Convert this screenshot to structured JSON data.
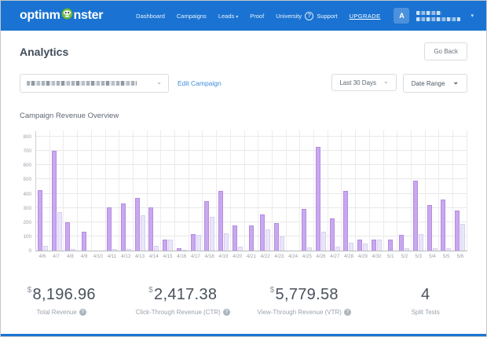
{
  "nav": {
    "logo": {
      "part1": "optinm",
      "part2": "nster"
    },
    "items": [
      {
        "label": "Dashboard"
      },
      {
        "label": "Campaigns"
      },
      {
        "label": "Leads"
      },
      {
        "label": "Proof"
      },
      {
        "label": "University"
      }
    ],
    "support_label": "Support",
    "upgrade_label": "UPGRADE",
    "avatar_letter": "A"
  },
  "header": {
    "title": "Analytics",
    "go_back_label": "Go Back"
  },
  "filters": {
    "edit_campaign_label": "Edit Campaign",
    "date_preset_value": "Last 30 Days",
    "date_range_label": "Date Range"
  },
  "chart_data": {
    "type": "bar",
    "title": "Campaign Revenue Overview",
    "categories": [
      "4/6",
      "4/7",
      "4/8",
      "4/9",
      "4/10",
      "4/11",
      "4/12",
      "4/13",
      "4/14",
      "4/15",
      "4/16",
      "4/17",
      "4/18",
      "4/19",
      "4/20",
      "4/21",
      "4/22",
      "4/23",
      "4/24",
      "4/25",
      "4/26",
      "4/27",
      "4/28",
      "4/29",
      "4/30",
      "5/1",
      "5/2",
      "5/3",
      "5/4",
      "5/5",
      "5/6"
    ],
    "series": [
      {
        "name": "Series 1 (dark purple bars)",
        "color": "#c9a8ee",
        "border": "#b48ce2",
        "values": [
          425,
          700,
          200,
          135,
          0,
          305,
          330,
          370,
          305,
          80,
          15,
          115,
          350,
          420,
          175,
          175,
          255,
          195,
          0,
          290,
          730,
          225,
          420,
          80,
          78,
          80,
          110,
          490,
          320,
          360,
          280
        ]
      },
      {
        "name": "Series 2 (light purple bars)",
        "color": "#eae5f9",
        "border": "#d7d0f1",
        "values": [
          35,
          270,
          10,
          0,
          0,
          10,
          10,
          250,
          35,
          80,
          5,
          110,
          240,
          120,
          30,
          0,
          150,
          100,
          0,
          20,
          130,
          30,
          55,
          50,
          80,
          0,
          15,
          115,
          15,
          15,
          190
        ]
      }
    ],
    "xlabel": "",
    "ylabel": "",
    "ylim": [
      0,
      800
    ],
    "yticks": [
      0,
      100,
      200,
      300,
      400,
      500,
      600,
      700,
      800
    ],
    "grid": true,
    "legend_position": "none"
  },
  "stats": {
    "items": [
      {
        "prefix": "$",
        "value": "8,196.96",
        "label": "Total Revenue"
      },
      {
        "prefix": "$",
        "value": "2,417.38",
        "label": "Click-Through Revenue (CTR)"
      },
      {
        "prefix": "$",
        "value": "5,779.58",
        "label": "View-Through Revenue (VTR)"
      },
      {
        "prefix": "",
        "value": "4",
        "label": "Split Tests"
      }
    ]
  },
  "icons": {
    "help": "?",
    "chevron": "⌄",
    "caret": "▾"
  },
  "colors": {
    "nav_blue": "#1a73d2",
    "link_blue": "#3e8ddf",
    "bar_dark": "#c9a8ee",
    "bar_light": "#eae5f9"
  }
}
